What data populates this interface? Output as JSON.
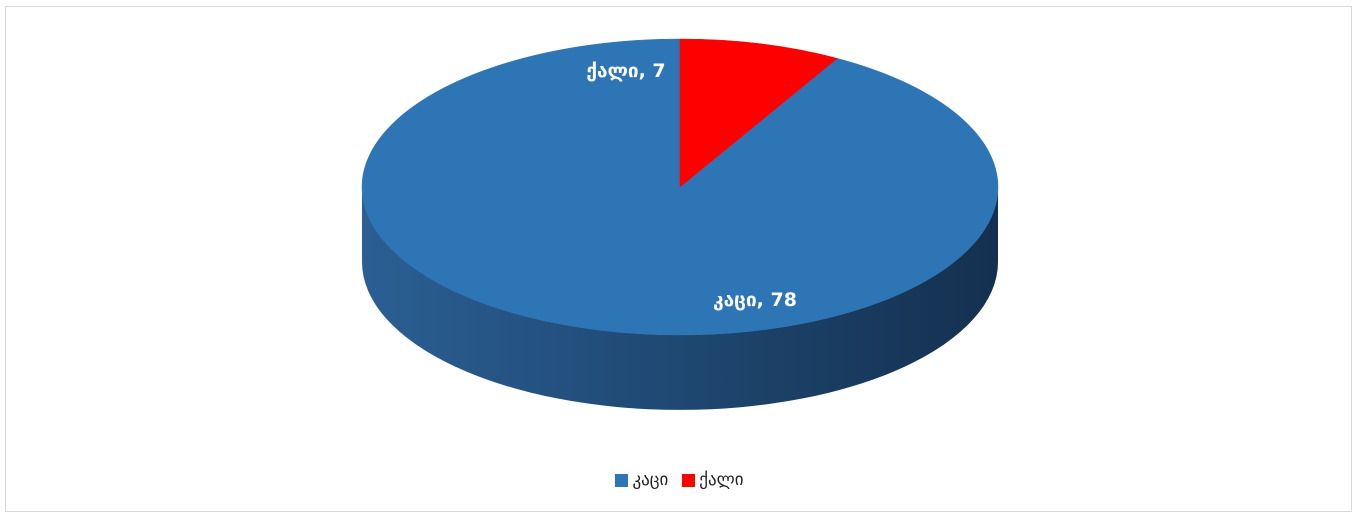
{
  "chart_data": {
    "type": "pie",
    "categories": [
      "კაცი",
      "ქალი"
    ],
    "values": [
      78,
      7
    ],
    "colors": [
      "#2e75b6",
      "#ff0000"
    ],
    "data_labels": [
      "კაცი, 78",
      "ქალი, 7"
    ],
    "legend": {
      "position": "bottom",
      "entries": [
        {
          "label": "კაცი",
          "color": "#2e75b6"
        },
        {
          "label": "ქალი",
          "color": "#ff0000"
        }
      ]
    },
    "style": "3d"
  }
}
